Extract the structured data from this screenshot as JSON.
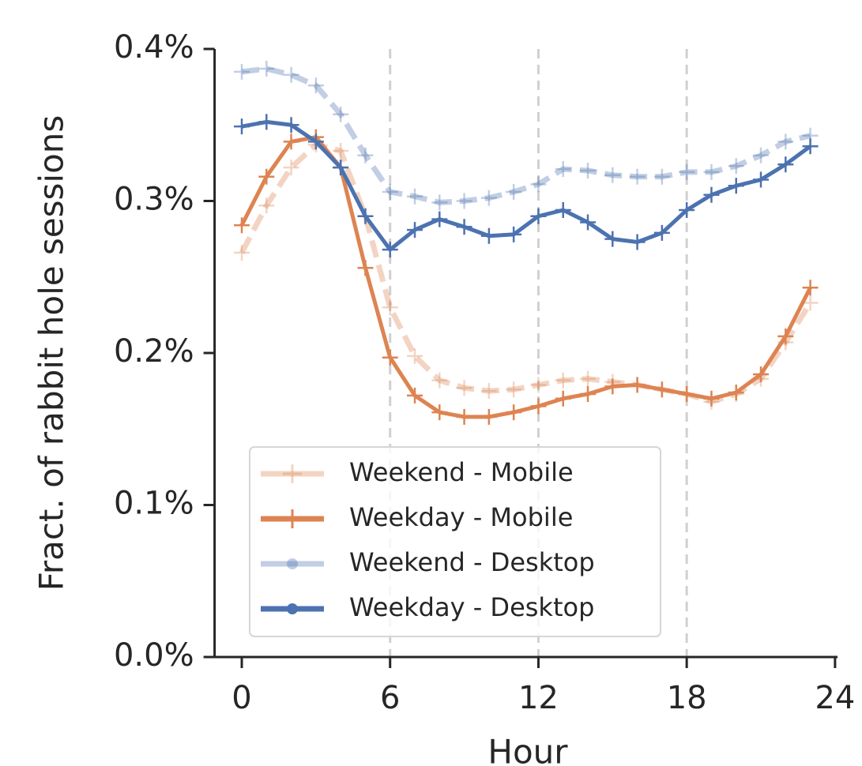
{
  "chart_data": {
    "type": "line",
    "xlabel": "Hour",
    "ylabel": "Fract. of rabbit hole sessions",
    "x": [
      0,
      1,
      2,
      3,
      4,
      5,
      6,
      7,
      8,
      9,
      10,
      11,
      12,
      13,
      14,
      15,
      16,
      17,
      18,
      19,
      20,
      21,
      22,
      23
    ],
    "xlim": [
      -1.1,
      24.1
    ],
    "xticks": [
      0,
      6,
      12,
      18,
      24
    ],
    "ylim": [
      0,
      0.4
    ],
    "yticks": [
      {
        "value": 0,
        "label": "0.0%"
      },
      {
        "value": 0.1,
        "label": "0.1%"
      },
      {
        "value": 0.2,
        "label": "0.2%"
      },
      {
        "value": 0.3,
        "label": "0.3%"
      },
      {
        "value": 0.4,
        "label": "0.4%"
      }
    ],
    "vlines": [
      6,
      12,
      18
    ],
    "legend": "lower left",
    "series": [
      {
        "name": "Weekend - Mobile",
        "color": "#dd8452",
        "opacity": 0.35,
        "dashed": true,
        "legend_marker": "plus",
        "values": [
          0.266,
          0.297,
          0.322,
          0.337,
          0.333,
          0.29,
          0.23,
          0.198,
          0.182,
          0.177,
          0.175,
          0.176,
          0.179,
          0.182,
          0.183,
          0.181,
          0.179,
          0.176,
          0.173,
          0.168,
          0.173,
          0.183,
          0.207,
          0.233
        ]
      },
      {
        "name": "Weekday - Mobile",
        "color": "#dd8452",
        "opacity": 1,
        "dashed": false,
        "legend_marker": "plus",
        "values": [
          0.284,
          0.316,
          0.339,
          0.342,
          0.322,
          0.256,
          0.197,
          0.172,
          0.161,
          0.158,
          0.158,
          0.161,
          0.165,
          0.17,
          0.173,
          0.178,
          0.179,
          0.176,
          0.173,
          0.17,
          0.174,
          0.186,
          0.211,
          0.243
        ]
      },
      {
        "name": "Weekend - Desktop",
        "color": "#4c72b0",
        "opacity": 0.35,
        "dashed": true,
        "legend_marker": "circle",
        "values": [
          0.385,
          0.387,
          0.383,
          0.376,
          0.357,
          0.33,
          0.306,
          0.303,
          0.299,
          0.3,
          0.302,
          0.306,
          0.311,
          0.321,
          0.32,
          0.317,
          0.316,
          0.316,
          0.319,
          0.319,
          0.323,
          0.33,
          0.339,
          0.343
        ]
      },
      {
        "name": "Weekday - Desktop",
        "color": "#4c72b0",
        "opacity": 1,
        "dashed": false,
        "legend_marker": "circle",
        "values": [
          0.349,
          0.352,
          0.35,
          0.339,
          0.322,
          0.29,
          0.268,
          0.281,
          0.288,
          0.283,
          0.277,
          0.278,
          0.29,
          0.294,
          0.286,
          0.275,
          0.273,
          0.279,
          0.294,
          0.304,
          0.31,
          0.314,
          0.324,
          0.336
        ]
      }
    ]
  }
}
